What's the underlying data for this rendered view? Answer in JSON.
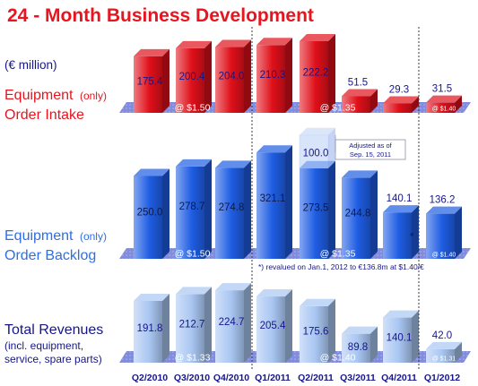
{
  "title": "24 - Month Business Development",
  "unit_label": "(€ million)",
  "colors": {
    "title": "#e8141e",
    "equipment_label": "#e8141e",
    "backlog_label": "#2f6fe0",
    "revenue_label": "#16168a",
    "red_bar": "#e0101a",
    "blue_bar": "#1f5de3",
    "light_blue_bar": "#a9c6f2",
    "band": "#6b78d6",
    "axis_labels": "#16168a"
  },
  "categories": [
    "Q2/2010",
    "Q3/2010",
    "Q4/2010",
    "Q1/2011",
    "Q2/2011",
    "Q3/2011",
    "Q4/2011",
    "Q1/2012"
  ],
  "chart_data": [
    {
      "type": "bar",
      "panel": "order_intake",
      "label_main": "Equipment",
      "label_qualifier": "(only)",
      "label_line2": "Order Intake",
      "categories": [
        "Q2/2010",
        "Q3/2010",
        "Q4/2010",
        "Q1/2011",
        "Q2/2011",
        "Q3/2011",
        "Q4/2011",
        "Q1/2012"
      ],
      "values": [
        175.4,
        200.4,
        204.0,
        210.3,
        222.2,
        51.5,
        29.3,
        31.5
      ],
      "value_labels": [
        "175.4",
        "200.4",
        "204.0",
        "210.3",
        "222.2",
        "51.5",
        "29.3",
        "31.5"
      ],
      "exchange_rates": [
        {
          "label": "@ $1.50",
          "from": 0,
          "to": 2
        },
        {
          "label": "@ $1.35",
          "from": 3,
          "to": 6
        },
        {
          "label": "@ $1.40",
          "from": 7,
          "to": 7
        }
      ]
    },
    {
      "type": "bar",
      "panel": "order_backlog",
      "label_main": "Equipment",
      "label_qualifier": "(only)",
      "label_line2": "Order Backlog",
      "categories": [
        "Q2/2010",
        "Q3/2010",
        "Q4/2010",
        "Q1/2011",
        "Q2/2011",
        "Q3/2011",
        "Q4/2011",
        "Q1/2012"
      ],
      "values": [
        250.0,
        278.7,
        274.8,
        321.1,
        273.5,
        244.8,
        140.1,
        136.2
      ],
      "value_labels": [
        "250.0",
        "278.7",
        "274.8",
        "321.1",
        "273.5",
        "244.8",
        "140.1",
        "136.2"
      ],
      "adjustment": {
        "category": "Q2/2011",
        "value": 100.0,
        "value_label": "100.0",
        "note": "Adjusted as of Sep. 15, 2011"
      },
      "asterisk_category": "Q4/2011",
      "footnote": "*) revalued on Jan.1, 2012 to €136.8m at $1.40/€",
      "exchange_rates": [
        {
          "label": "@ $1.50",
          "from": 0,
          "to": 2
        },
        {
          "label": "@ $1.35",
          "from": 3,
          "to": 6
        },
        {
          "label": "@ $1.40",
          "from": 7,
          "to": 7
        }
      ]
    },
    {
      "type": "bar",
      "panel": "total_revenues",
      "label_main": "Total Revenues",
      "label_sub1": "(incl. equipment,",
      "label_sub2": "service, spare parts)",
      "categories": [
        "Q2/2010",
        "Q3/2010",
        "Q4/2010",
        "Q1/2011",
        "Q2/2011",
        "Q3/2011",
        "Q4/2011",
        "Q1/2012"
      ],
      "values": [
        191.8,
        212.7,
        224.7,
        205.4,
        175.6,
        89.8,
        140.1,
        42.0
      ],
      "value_labels": [
        "191.8",
        "212.7",
        "224.7",
        "205.4",
        "175.6",
        "89.8",
        "140.1",
        "42.0"
      ],
      "exchange_rates": [
        {
          "label": "@ $1.33",
          "from": 0,
          "to": 2
        },
        {
          "label": "@ $1.40",
          "from": 3,
          "to": 6
        },
        {
          "label": "@ $1.31",
          "from": 7,
          "to": 7
        }
      ]
    }
  ]
}
